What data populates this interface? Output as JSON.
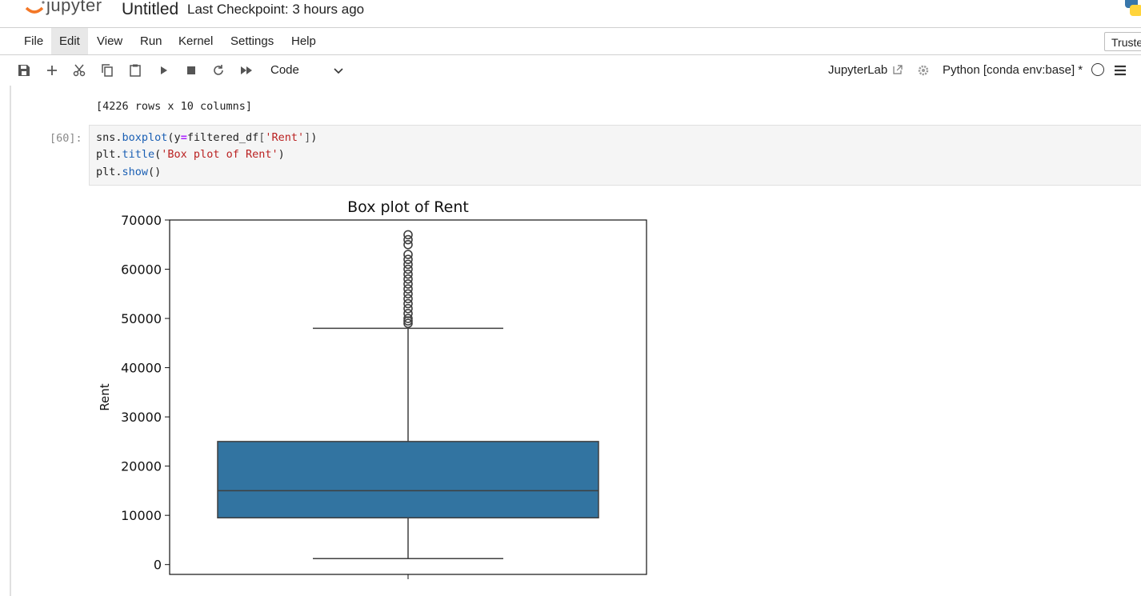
{
  "header": {
    "logo_text": "jupyter",
    "notebook_title": "Untitled",
    "checkpoint": "Last Checkpoint: 3 hours ago"
  },
  "menubar": {
    "items": [
      "File",
      "Edit",
      "View",
      "Run",
      "Kernel",
      "Settings",
      "Help"
    ],
    "active": "Edit",
    "trusted": "Trusted"
  },
  "toolbar": {
    "icons": [
      "save-icon",
      "add-cell-icon",
      "cut-icon",
      "copy-icon",
      "paste-icon",
      "run-icon",
      "stop-icon",
      "restart-icon",
      "run-all-icon"
    ],
    "cell_type": "Code",
    "jupyterlab_link": "JupyterLab",
    "kernel_name": "Python [conda env:base] *"
  },
  "notebook": {
    "previous_output": "[4226 rows x 10 columns]",
    "cell": {
      "prompt": "[60]:",
      "code_lines": [
        "sns.boxplot(y=filtered_df['Rent'])",
        "plt.title('Box plot of Rent')",
        "plt.show()"
      ]
    }
  },
  "colors": {
    "box_fill": "#3274a1",
    "box_line": "#3f3f3f",
    "logo_orange": "#f37726"
  },
  "chart_data": {
    "type": "box",
    "title": "Box plot of Rent",
    "xlabel": "",
    "ylabel": "Rent",
    "ylim": [
      -2000,
      70000
    ],
    "yticks": [
      0,
      10000,
      20000,
      30000,
      40000,
      50000,
      60000,
      70000
    ],
    "ytick_labels": [
      "0",
      "10000",
      "20000",
      "30000",
      "40000",
      "50000",
      "60000",
      "70000"
    ],
    "grid": false,
    "series": [
      {
        "whisker_low": 1200,
        "q1": 9500,
        "median": 15000,
        "q3": 25000,
        "whisker_high": 48000,
        "outliers": [
          49000,
          49500,
          50000,
          51000,
          52000,
          53000,
          54000,
          55000,
          56000,
          57000,
          58000,
          59000,
          60000,
          61000,
          62000,
          63000,
          65000,
          66000,
          67000
        ]
      }
    ]
  }
}
